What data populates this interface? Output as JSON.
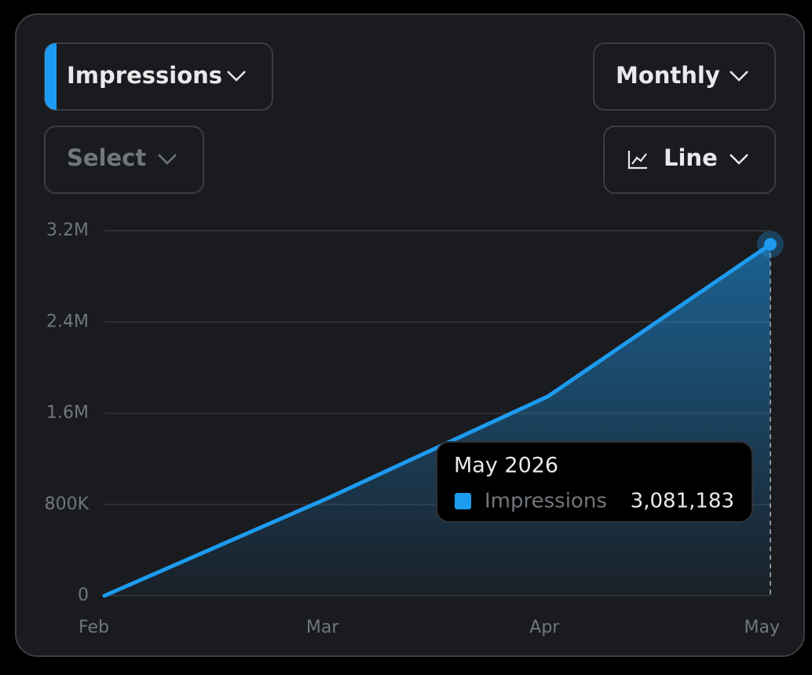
{
  "controls": {
    "metric": "Impressions",
    "period": "Monthly",
    "filter": "Select",
    "chart_kind": "Line"
  },
  "chart_data": {
    "type": "line",
    "categories": [
      "Feb",
      "Mar",
      "Apr",
      "May"
    ],
    "series": [
      {
        "name": "Impressions",
        "color": "#1d9bf0",
        "values": [
          0,
          850000,
          1750000,
          3081183
        ],
        "value_labels": [
          null,
          null,
          null,
          "3,081,183"
        ]
      }
    ],
    "ylim": [
      0,
      3200000
    ],
    "yticks": [
      0,
      {
        "value": 800000,
        "label": "800K"
      },
      {
        "value": 1600000,
        "label": "1.6M"
      },
      {
        "value": 2400000,
        "label": "2.4M"
      },
      {
        "value": 3200000,
        "label": "3.2M"
      }
    ],
    "grid": true,
    "tooltip": {
      "title": "May 2026",
      "index": 3
    }
  }
}
